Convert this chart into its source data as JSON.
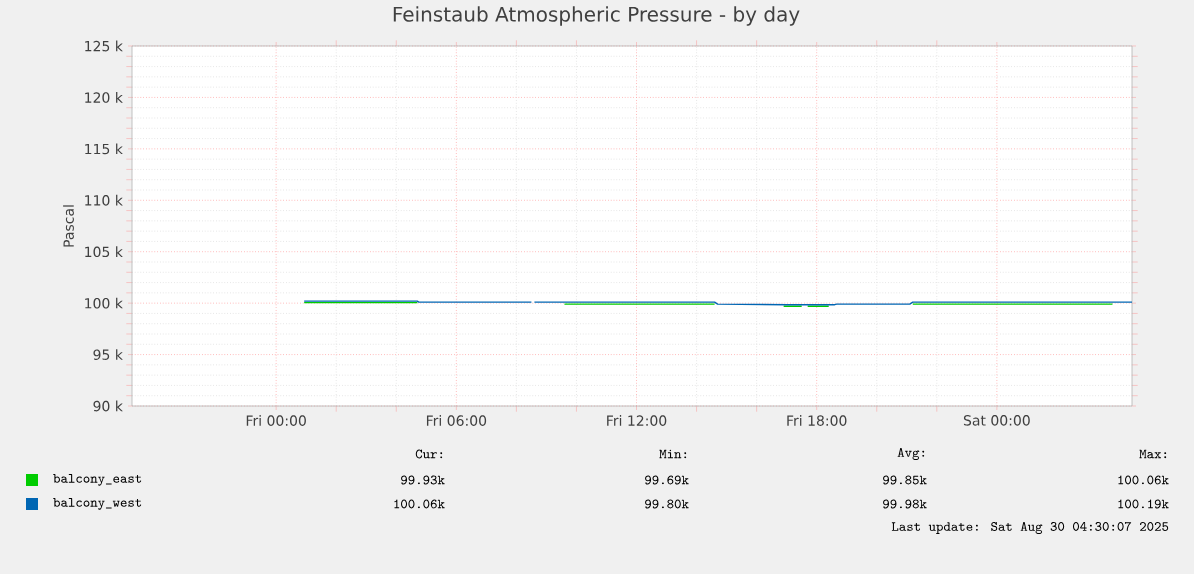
{
  "chart_data": {
    "type": "line",
    "title": "Feinstaub Atmospheric Pressure - by day",
    "ylabel": "Pascal",
    "xlim": [
      "2025-08-28T19:12",
      "2025-08-30T04:30"
    ],
    "xticks": [
      {
        "value": "2025-08-29T00:00",
        "label": "Fri 00:00"
      },
      {
        "value": "2025-08-29T06:00",
        "label": "Fri 06:00"
      },
      {
        "value": "2025-08-29T12:00",
        "label": "Fri 12:00"
      },
      {
        "value": "2025-08-29T18:00",
        "label": "Fri 18:00"
      },
      {
        "value": "2025-08-30T00:00",
        "label": "Sat 00:00"
      }
    ],
    "ylim": [
      90000,
      125000
    ],
    "yticks": [
      {
        "value": 90000,
        "label": "90 k"
      },
      {
        "value": 95000,
        "label": "95 k"
      },
      {
        "value": 100000,
        "label": "100 k"
      },
      {
        "value": 105000,
        "label": "105 k"
      },
      {
        "value": 110000,
        "label": "110 k"
      },
      {
        "value": 115000,
        "label": "115 k"
      },
      {
        "value": 120000,
        "label": "120 k"
      },
      {
        "value": 125000,
        "label": "125 k"
      }
    ],
    "grid": true,
    "legend": "bottom",
    "series": [
      {
        "name": "balcony_east",
        "color": "#00cc00",
        "x": [
          "2025-08-29T00:56",
          "2025-08-29T04:42",
          "2025-08-29T04:48",
          "2025-08-29T09:36",
          "2025-08-29T14:36",
          "2025-08-29T14:42",
          "2025-08-29T16:54",
          "2025-08-29T17:30",
          "2025-08-29T17:36",
          "2025-08-29T17:42",
          "2025-08-29T18:24",
          "2025-08-29T19:06",
          "2025-08-29T21:12",
          "2025-08-30T03:51"
        ],
        "values": [
          100050,
          100050,
          null,
          99900,
          99900,
          null,
          99700,
          99700,
          null,
          99700,
          99700,
          null,
          99900,
          99900
        ]
      },
      {
        "name": "balcony_west",
        "color": "#0066b3",
        "x": [
          "2025-08-29T00:56",
          "2025-08-29T04:42",
          "2025-08-29T04:45",
          "2025-08-29T08:30",
          "2025-08-29T08:33",
          "2025-08-29T08:36",
          "2025-08-29T14:36",
          "2025-08-29T14:42",
          "2025-08-29T17:00",
          "2025-08-29T18:36",
          "2025-08-29T18:40",
          "2025-08-29T21:06",
          "2025-08-29T21:12",
          "2025-08-30T04:30"
        ],
        "values": [
          100200,
          100200,
          100100,
          100100,
          null,
          100100,
          100100,
          99900,
          99850,
          99850,
          99900,
          99900,
          100100,
          100100
        ]
      }
    ],
    "annotations": [
      "Cur:",
      "Min:",
      "Avg:",
      "Max:",
      "99.93k",
      "99.69k",
      "99.85k",
      "100.06k",
      "100.06k",
      "99.80k",
      "99.98k",
      "100.19k",
      "Last update: Sat Aug 30 04:30:07 2025"
    ]
  }
}
